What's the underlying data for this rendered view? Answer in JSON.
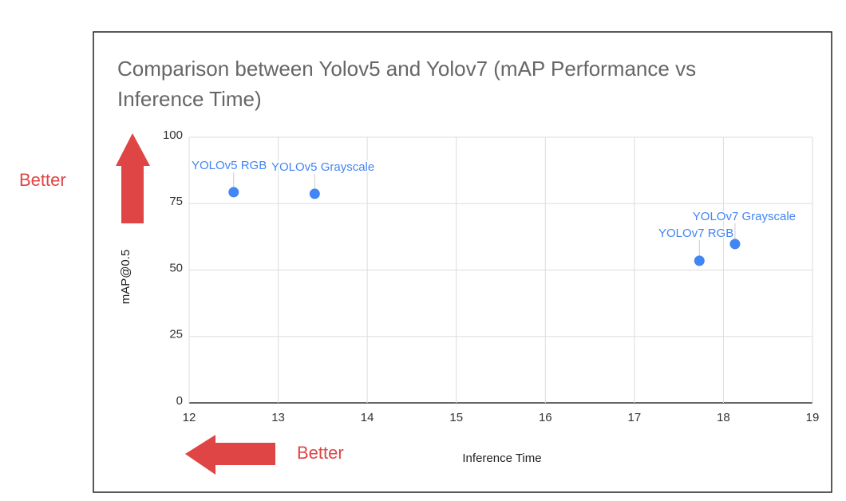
{
  "chart_data": {
    "type": "scatter",
    "title": [
      "Comparison between Yolov5 and Yolov7 (mAP Performance vs",
      "Inference Time)"
    ],
    "x_label": "Inference Time",
    "y_label": "mAP@0.5",
    "x": [
      12.5,
      13.41,
      17.73,
      18.13
    ],
    "values": [
      79.3,
      78.7,
      53.5,
      59.8
    ],
    "point_labels": [
      "YOLOv5 RGB",
      "YOLOv5 Grayscale",
      "YOLOv7 RGB",
      "YOLOv7 Grayscale"
    ],
    "color": "#4285f4",
    "xlim": [
      12,
      19
    ],
    "xticks": [
      12,
      13,
      14,
      15,
      16,
      17,
      18,
      19
    ],
    "ylim": [
      0,
      100
    ],
    "yticks": [
      0,
      25,
      50,
      75,
      100
    ],
    "grid": true,
    "annotations": [
      "Better",
      "Better"
    ]
  }
}
